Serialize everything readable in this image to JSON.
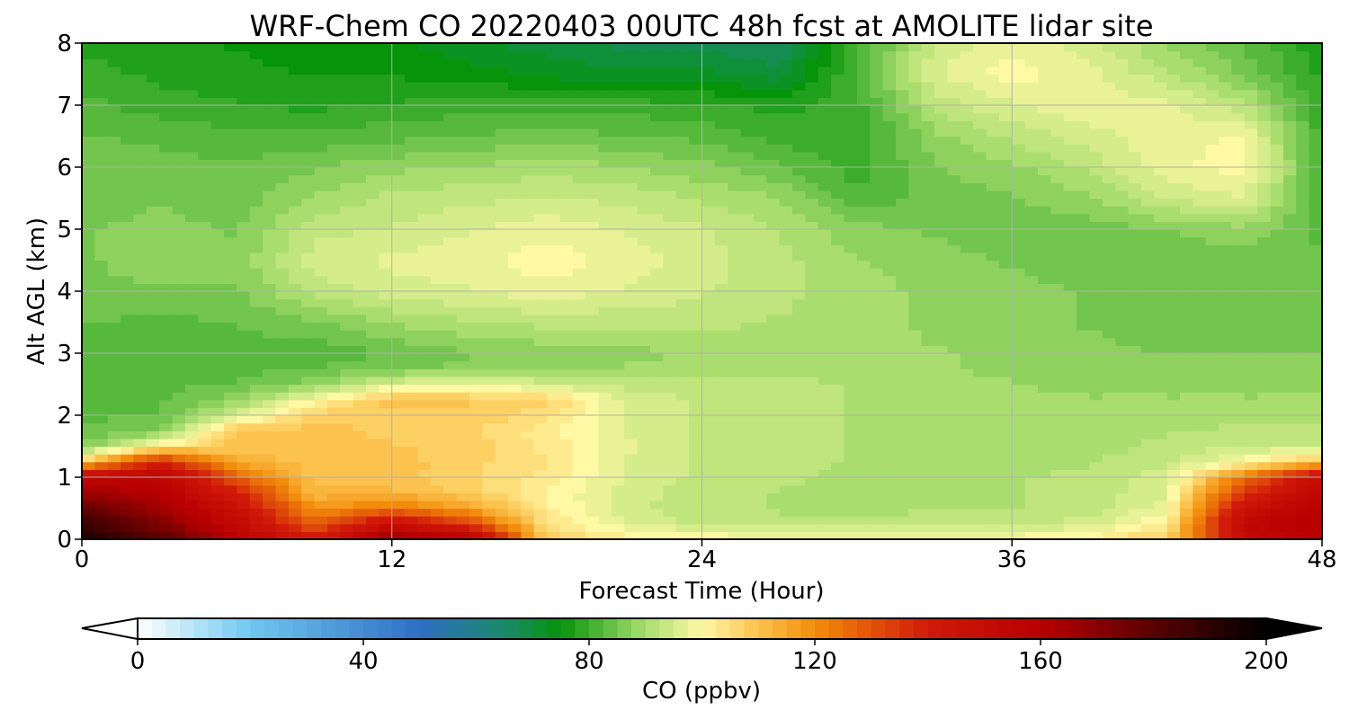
{
  "chart_data": {
    "type": "heatmap",
    "title": "WRF-Chem CO  20220403 00UTC 48h fcst at AMOLITE lidar site",
    "xlabel": "Forecast Time (Hour)",
    "ylabel": "Alt AGL (km)",
    "xlim": [
      0,
      48
    ],
    "ylim": [
      0,
      8
    ],
    "xticks": [
      0,
      12,
      24,
      36,
      48
    ],
    "yticks": [
      0,
      1,
      2,
      3,
      4,
      5,
      6,
      7,
      8
    ],
    "grid": true,
    "x": [
      0,
      3,
      6,
      9,
      12,
      15,
      18,
      21,
      24,
      27,
      30,
      33,
      36,
      39,
      42,
      45,
      48
    ],
    "y": [
      0,
      0.25,
      0.5,
      0.75,
      1,
      1.25,
      1.5,
      1.75,
      2,
      2.25,
      2.5,
      2.75,
      3,
      3.5,
      4,
      4.5,
      5,
      5.5,
      6,
      6.5,
      7,
      7.5,
      8
    ],
    "z": [
      [
        196,
        182,
        160,
        140,
        168,
        160,
        108,
        102,
        101,
        100,
        100,
        100,
        100,
        102,
        108,
        152,
        160
      ],
      [
        188,
        172,
        152,
        128,
        150,
        134,
        104,
        97,
        93,
        92,
        92,
        93,
        93,
        95,
        103,
        154,
        162
      ],
      [
        178,
        166,
        148,
        118,
        124,
        116,
        102,
        95,
        92,
        91,
        90,
        91,
        91,
        92,
        98,
        148,
        160
      ],
      [
        165,
        160,
        140,
        112,
        112,
        108,
        101,
        95,
        92,
        91,
        90,
        90,
        91,
        92,
        96,
        136,
        156
      ],
      [
        155,
        158,
        128,
        110,
        110,
        107,
        103,
        96,
        93,
        92,
        90,
        90,
        91,
        92,
        95,
        124,
        152
      ],
      [
        110,
        140,
        114,
        109,
        110,
        107,
        104,
        96,
        93,
        92,
        91,
        90,
        90,
        91,
        93,
        100,
        110
      ],
      [
        86,
        102,
        110,
        109,
        109,
        108,
        103,
        97,
        93,
        92,
        91,
        90,
        90,
        90,
        92,
        94,
        94
      ],
      [
        84,
        86,
        110,
        110,
        108,
        107,
        102,
        96,
        93,
        92,
        91,
        90,
        90,
        90,
        91,
        92,
        92
      ],
      [
        83,
        84,
        95,
        108,
        108,
        108,
        105,
        96,
        93,
        92,
        91,
        90,
        90,
        89,
        90,
        90,
        90
      ],
      [
        83,
        83,
        88,
        100,
        110,
        109,
        107,
        96,
        93,
        92,
        91,
        90,
        89,
        89,
        89,
        89,
        89
      ],
      [
        83,
        83,
        84,
        88,
        96,
        98,
        95,
        93,
        92,
        92,
        91,
        90,
        89,
        88,
        88,
        88,
        88
      ],
      [
        82,
        82,
        83,
        84,
        86,
        87,
        88,
        89,
        90,
        91,
        90,
        89,
        88,
        87,
        87,
        87,
        87
      ],
      [
        82,
        81,
        82,
        82,
        84,
        86,
        87,
        88,
        89,
        90,
        90,
        89,
        88,
        87,
        86,
        86,
        86
      ],
      [
        84,
        83,
        84,
        86,
        89,
        91,
        92,
        92,
        92,
        91,
        90,
        88,
        87,
        86,
        85,
        85,
        85
      ],
      [
        86,
        86,
        86,
        92,
        95,
        96,
        98,
        96,
        94,
        92,
        90,
        88,
        87,
        86,
        85,
        85,
        84
      ],
      [
        86,
        87,
        87,
        95,
        97,
        98,
        100,
        98,
        95,
        92,
        89,
        87,
        86,
        85,
        85,
        85,
        84
      ],
      [
        86,
        87,
        86,
        93,
        94,
        96,
        98,
        96,
        94,
        91,
        87,
        86,
        85,
        85,
        86,
        88,
        83
      ],
      [
        85,
        86,
        85,
        89,
        92,
        93,
        94,
        93,
        91,
        89,
        82,
        85,
        86,
        88,
        94,
        96,
        82
      ],
      [
        85,
        85,
        84,
        86,
        88,
        89,
        90,
        89,
        87,
        84,
        80,
        86,
        88,
        92,
        98,
        100,
        81
      ],
      [
        84,
        83,
        82,
        82,
        83,
        84,
        85,
        84,
        83,
        80,
        79,
        88,
        92,
        95,
        98,
        99,
        80
      ],
      [
        82,
        80,
        79,
        78,
        79,
        80,
        80,
        80,
        79,
        78,
        80,
        92,
        96,
        98,
        97,
        92,
        79
      ],
      [
        80,
        78,
        77,
        76,
        76,
        75,
        73,
        72,
        72,
        70,
        82,
        96,
        100,
        97,
        92,
        86,
        78
      ],
      [
        78,
        77,
        76,
        75,
        74,
        72,
        70,
        68,
        68,
        66,
        80,
        94,
        98,
        95,
        88,
        83,
        77
      ]
    ],
    "colorbar": {
      "label": "CO  (ppbv)",
      "ticks": [
        0,
        40,
        80,
        120,
        160,
        200
      ],
      "range": [
        0,
        200
      ],
      "extend": "both",
      "stops": [
        {
          "v": 0,
          "c": "#ffffff"
        },
        {
          "v": 20,
          "c": "#6fc7f0"
        },
        {
          "v": 50,
          "c": "#2f6ec4"
        },
        {
          "v": 65,
          "c": "#1a8a6a"
        },
        {
          "v": 75,
          "c": "#05940a"
        },
        {
          "v": 90,
          "c": "#a9de6e"
        },
        {
          "v": 100,
          "c": "#fff9a6"
        },
        {
          "v": 110,
          "c": "#fcc24e"
        },
        {
          "v": 120,
          "c": "#f28c0a"
        },
        {
          "v": 140,
          "c": "#d11a0a"
        },
        {
          "v": 160,
          "c": "#b80000"
        },
        {
          "v": 180,
          "c": "#5a0000"
        },
        {
          "v": 200,
          "c": "#000000"
        }
      ]
    }
  }
}
